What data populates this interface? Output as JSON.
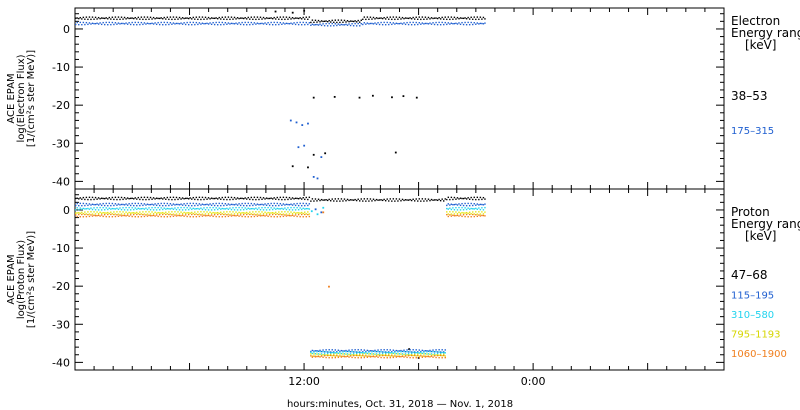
{
  "xlabel": "hours:minutes, Oct. 31, 2018 — Nov. 1, 2018",
  "x_ticks": [
    {
      "label": "12:00",
      "hour": 12
    },
    {
      "label": "0:00",
      "hour": 24
    }
  ],
  "panels": [
    {
      "id": "electron",
      "ylabel_lines": [
        "ACE EPAM",
        "log(Electron Flux)",
        "[1/(cm²s ster MeV)]"
      ],
      "legend_title_lines": [
        "Electron",
        "Energy ranges",
        "[keV]"
      ],
      "series": [
        {
          "label": "38–53",
          "color": "#000000"
        },
        {
          "label": "175–315",
          "color": "#1f5fd0"
        }
      ]
    },
    {
      "id": "proton",
      "ylabel_lines": [
        "ACE EPAM",
        "log(Proton Flux)",
        "[1/(cm²s ster MeV)]"
      ],
      "legend_title_lines": [
        "Proton",
        "Energy ranges",
        "[keV]"
      ],
      "series": [
        {
          "label": "47–68",
          "color": "#000000"
        },
        {
          "label": "115–195",
          "color": "#1f5fd0"
        },
        {
          "label": "310–580",
          "color": "#22d3ee"
        },
        {
          "label": "795–1193",
          "color": "#e5e512"
        },
        {
          "label": "1060–1900",
          "color": "#f07f1e"
        }
      ]
    }
  ],
  "chart_data": [
    {
      "type": "scatter",
      "title": "",
      "xlabel": "hours:minutes, Oct. 31, 2018 — Nov. 1, 2018",
      "ylabel": "ACE EPAM log(Electron Flux) [1/(cm²s ster MeV)]",
      "xlim_hours": [
        0,
        34
      ],
      "ylim": [
        -42,
        5.5
      ],
      "yticks": [
        0,
        -10,
        -20,
        -30,
        -40
      ],
      "series": [
        {
          "name": "38–53",
          "color": "#000000",
          "baseline": {
            "x_range": [
              0,
              21.5
            ],
            "y": 3.0,
            "gap": [
              12.3,
              15.0
            ],
            "gap_y": 2.2
          },
          "points": [
            [
              10.5,
              4.6
            ],
            [
              11.4,
              4.3
            ],
            [
              12.0,
              4.8
            ],
            [
              12.5,
              -18.0
            ],
            [
              13.6,
              -17.8
            ],
            [
              14.9,
              -18.0
            ],
            [
              15.6,
              -17.5
            ],
            [
              16.6,
              -17.9
            ],
            [
              17.2,
              -17.6
            ],
            [
              17.9,
              -18.0
            ],
            [
              12.5,
              -33.0
            ],
            [
              13.1,
              -32.6
            ],
            [
              16.8,
              -32.4
            ],
            [
              12.2,
              -36.3
            ],
            [
              11.4,
              -36.0
            ]
          ]
        },
        {
          "name": "175–315",
          "color": "#1f5fd0",
          "baseline": {
            "x_range": [
              0,
              21.5
            ],
            "y": 1.6,
            "gap": [
              12.3,
              15.0
            ],
            "gap_y": 1.3
          },
          "points": [
            [
              11.3,
              -24.0
            ],
            [
              11.6,
              -24.5
            ],
            [
              11.9,
              -25.2
            ],
            [
              12.2,
              -24.8
            ],
            [
              12.0,
              -30.6
            ],
            [
              11.7,
              -31.0
            ],
            [
              12.9,
              -33.6
            ],
            [
              12.5,
              -38.8
            ],
            [
              12.7,
              -39.2
            ]
          ]
        }
      ]
    },
    {
      "type": "scatter",
      "title": "",
      "xlabel": "hours:minutes, Oct. 31, 2018 — Nov. 1, 2018",
      "ylabel": "ACE EPAM log(Proton Flux) [1/(cm²s ster MeV)]",
      "xlim_hours": [
        0,
        34
      ],
      "ylim": [
        -42,
        5.5
      ],
      "yticks": [
        0,
        -10,
        -20,
        -30,
        -40
      ],
      "series": [
        {
          "name": "47–68",
          "color": "#000000",
          "baseline": {
            "x_range": [
              0,
              21.5
            ],
            "y": 3.2,
            "gap": [
              12.3,
              19.4
            ],
            "gap_y": 2.8
          },
          "points": [
            [
              17.5,
              -36.5
            ],
            [
              18.0,
              -38.8
            ]
          ]
        },
        {
          "name": "115–195",
          "color": "#1f5fd0",
          "baseline": {
            "x_range": [
              0,
              21.5
            ],
            "y": 1.6,
            "gap": [
              12.3,
              19.4
            ],
            "gap_y": -36.8
          },
          "points": [
            [
              12.6,
              0.2
            ],
            [
              12.9,
              -0.6
            ]
          ]
        },
        {
          "name": "310–580",
          "color": "#22d3ee",
          "baseline": {
            "x_range": [
              0,
              21.5
            ],
            "y": 0.5,
            "gap": [
              12.3,
              19.4
            ],
            "gap_y": -37.3
          },
          "points": [
            [
              12.4,
              -0.3
            ],
            [
              12.7,
              -1.1
            ],
            [
              13.0,
              0.6
            ]
          ]
        },
        {
          "name": "795–1193",
          "color": "#e5e512",
          "baseline": {
            "x_range": [
              0,
              21.5
            ],
            "y": -0.6,
            "gap": [
              12.3,
              19.4
            ],
            "gap_y": -37.9
          },
          "points": []
        },
        {
          "name": "1060–1900",
          "color": "#f07f1e",
          "baseline": {
            "x_range": [
              0,
              21.5
            ],
            "y": -1.3,
            "gap": [
              12.3,
              19.4
            ],
            "gap_y": -38.3
          },
          "points": [
            [
              13.0,
              -0.6
            ],
            [
              13.3,
              -20.1
            ]
          ]
        }
      ]
    }
  ]
}
